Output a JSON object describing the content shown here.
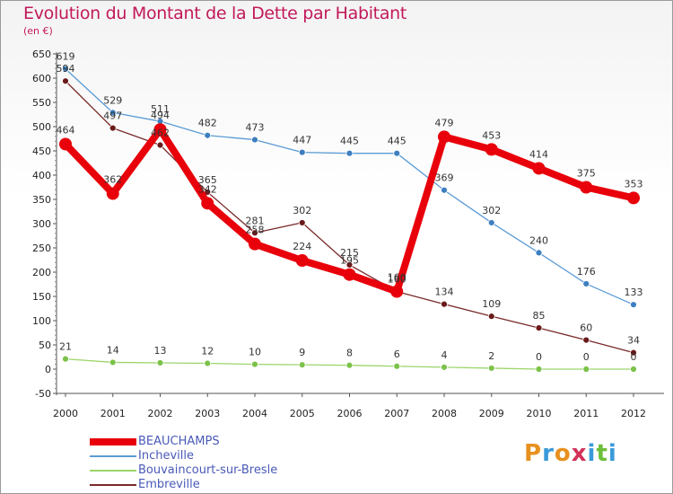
{
  "header": {
    "title": "Evolution du Montant de la Dette par Habitant",
    "unit": "(en €)"
  },
  "logo": {
    "text": "Proxiti",
    "colors": [
      "#e8901e",
      "#3a9ad9",
      "#e8901e",
      "#d2325a",
      "#3a9ad9",
      "#6cbf3a",
      "#3a9ad9"
    ]
  },
  "chart_data": {
    "type": "line",
    "x": [
      "2000",
      "2001",
      "2002",
      "2003",
      "2004",
      "2005",
      "2006",
      "2007",
      "2008",
      "2009",
      "2010",
      "2011",
      "2012"
    ],
    "ylim": [
      -50,
      650
    ],
    "yticks": [
      "-50",
      "0",
      "50",
      "100",
      "150",
      "200",
      "250",
      "300",
      "350",
      "400",
      "450",
      "500",
      "550",
      "600",
      "650"
    ],
    "grid": false,
    "legend_position": "bottom-left",
    "series": [
      {
        "name": "BEAUCHAMPS",
        "color": "#e8000b",
        "marker": "#e8000b",
        "values": [
          464,
          362,
          494,
          342,
          258,
          224,
          195,
          160,
          479,
          453,
          414,
          375,
          353
        ],
        "labels": [
          "464",
          "362",
          "494",
          "342",
          "258",
          "224",
          "195",
          "160",
          "479",
          "453",
          "414",
          "375",
          "353"
        ]
      },
      {
        "name": "Incheville",
        "color": "#5b9bd5",
        "marker": "#3d7fc0",
        "values": [
          619,
          529,
          511,
          482,
          473,
          447,
          445,
          445,
          369,
          302,
          240,
          176,
          133
        ],
        "labels": [
          "619",
          "529",
          "511",
          "482",
          "473",
          "447",
          "445",
          "445",
          "369",
          "302",
          "240",
          "176",
          "133"
        ]
      },
      {
        "name": "Bouvaincourt-sur-Bresle",
        "color": "#9bd56a",
        "marker": "#7cc24a",
        "values": [
          21,
          14,
          13,
          12,
          10,
          9,
          8,
          6,
          4,
          2,
          0,
          0,
          0
        ],
        "labels": [
          "21",
          "14",
          "13",
          "12",
          "10",
          "9",
          "8",
          "6",
          "4",
          "2",
          "0",
          "0",
          "0"
        ]
      },
      {
        "name": "Embreville",
        "color": "#7a2a2a",
        "marker": "#6b1a1a",
        "values": [
          594,
          497,
          462,
          365,
          281,
          302,
          215,
          160,
          134,
          109,
          85,
          60,
          34
        ],
        "labels": [
          "594",
          "497",
          "462",
          "365",
          "281",
          "302",
          "215",
          "160",
          "134",
          "109",
          "85",
          "60",
          "34"
        ]
      }
    ]
  }
}
